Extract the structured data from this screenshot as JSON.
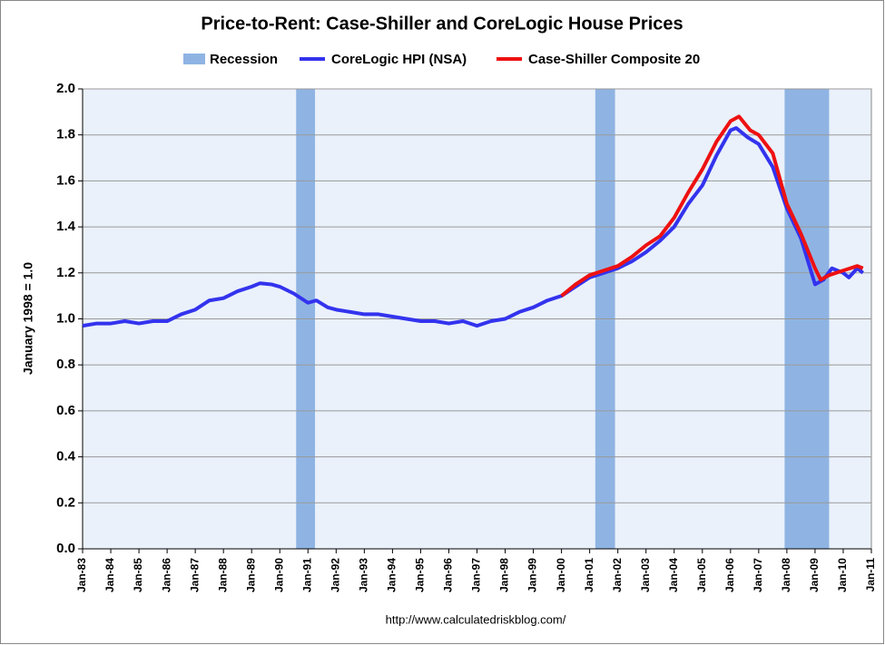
{
  "chart_data": {
    "type": "line",
    "title": "Price-to-Rent: Case-Shiller and CoreLogic House Prices",
    "y_label": "January 1998 = 1.0",
    "source": "http://www.calculatedriskblog.com/",
    "xlim": [
      1983,
      2011
    ],
    "xticks": [
      {
        "value": 1983,
        "label": "Jan-83"
      },
      {
        "value": 1984,
        "label": "Jan-84"
      },
      {
        "value": 1985,
        "label": "Jan-85"
      },
      {
        "value": 1986,
        "label": "Jan-86"
      },
      {
        "value": 1987,
        "label": "Jan-87"
      },
      {
        "value": 1988,
        "label": "Jan-88"
      },
      {
        "value": 1989,
        "label": "Jan-89"
      },
      {
        "value": 1990,
        "label": "Jan-90"
      },
      {
        "value": 1991,
        "label": "Jan-91"
      },
      {
        "value": 1992,
        "label": "Jan-92"
      },
      {
        "value": 1993,
        "label": "Jan-93"
      },
      {
        "value": 1994,
        "label": "Jan-94"
      },
      {
        "value": 1995,
        "label": "Jan-95"
      },
      {
        "value": 1996,
        "label": "Jan-96"
      },
      {
        "value": 1997,
        "label": "Jan-97"
      },
      {
        "value": 1998,
        "label": "Jan-98"
      },
      {
        "value": 1999,
        "label": "Jan-99"
      },
      {
        "value": 2000,
        "label": "Jan-00"
      },
      {
        "value": 2001,
        "label": "Jan-01"
      },
      {
        "value": 2002,
        "label": "Jan-02"
      },
      {
        "value": 2003,
        "label": "Jan-03"
      },
      {
        "value": 2004,
        "label": "Jan-04"
      },
      {
        "value": 2005,
        "label": "Jan-05"
      },
      {
        "value": 2006,
        "label": "Jan-06"
      },
      {
        "value": 2007,
        "label": "Jan-07"
      },
      {
        "value": 2008,
        "label": "Jan-08"
      },
      {
        "value": 2009,
        "label": "Jan-09"
      },
      {
        "value": 2010,
        "label": "Jan-10"
      },
      {
        "value": 2011,
        "label": "Jan-11"
      }
    ],
    "ylim": [
      0,
      2
    ],
    "yticks": [
      {
        "value": 0,
        "label": "0.0"
      },
      0.2,
      0.4,
      0.6,
      0.8,
      {
        "value": 1,
        "label": "1.0"
      },
      1.2,
      1.4,
      1.6,
      1.8,
      {
        "value": 2,
        "label": "2.0"
      }
    ],
    "grid": true,
    "recessions": {
      "name": "Recession",
      "color": "#8fb4e3",
      "spans": [
        [
          1990.58,
          1991.25
        ],
        [
          2001.2,
          2001.9
        ],
        [
          2007.92,
          2009.5
        ]
      ]
    },
    "series": [
      {
        "name": "CoreLogic HPI (NSA)",
        "color": "#3333ee",
        "x": [
          1983,
          1983.5,
          1984,
          1984.5,
          1985,
          1985.5,
          1986,
          1986.5,
          1987,
          1987.5,
          1988,
          1988.5,
          1989,
          1989.3,
          1989.7,
          1990,
          1990.5,
          1991,
          1991.3,
          1991.7,
          1992,
          1992.5,
          1993,
          1993.5,
          1994,
          1994.5,
          1995,
          1995.5,
          1996,
          1996.5,
          1997,
          1997.5,
          1998,
          1998.5,
          1999,
          1999.5,
          2000,
          2000.5,
          2001,
          2001.5,
          2002,
          2002.5,
          2003,
          2003.5,
          2004,
          2004.5,
          2005,
          2005.5,
          2006,
          2006.2,
          2006.6,
          2007,
          2007.5,
          2008,
          2008.5,
          2009,
          2009.3,
          2009.6,
          2010,
          2010.2,
          2010.5,
          2010.7
        ],
        "values": [
          0.97,
          0.98,
          0.98,
          0.99,
          0.98,
          0.99,
          0.99,
          1.02,
          1.04,
          1.08,
          1.09,
          1.12,
          1.14,
          1.155,
          1.15,
          1.14,
          1.11,
          1.07,
          1.08,
          1.05,
          1.04,
          1.03,
          1.02,
          1.02,
          1.01,
          1.0,
          0.99,
          0.99,
          0.98,
          0.99,
          0.97,
          0.99,
          1.0,
          1.03,
          1.05,
          1.08,
          1.1,
          1.14,
          1.18,
          1.2,
          1.22,
          1.25,
          1.29,
          1.34,
          1.4,
          1.5,
          1.58,
          1.71,
          1.82,
          1.83,
          1.79,
          1.76,
          1.66,
          1.48,
          1.35,
          1.15,
          1.17,
          1.22,
          1.2,
          1.18,
          1.22,
          1.2
        ]
      },
      {
        "name": "Case-Shiller Composite 20",
        "color": "#ee1111",
        "x": [
          2000,
          2000.5,
          2001,
          2001.5,
          2002,
          2002.5,
          2003,
          2003.5,
          2004,
          2004.5,
          2005,
          2005.5,
          2006,
          2006.3,
          2006.7,
          2007,
          2007.5,
          2008,
          2008.5,
          2009,
          2009.2,
          2009.5,
          2010,
          2010.5,
          2010.7
        ],
        "values": [
          1.1,
          1.15,
          1.19,
          1.21,
          1.23,
          1.27,
          1.32,
          1.36,
          1.44,
          1.55,
          1.65,
          1.77,
          1.86,
          1.88,
          1.82,
          1.8,
          1.72,
          1.5,
          1.37,
          1.22,
          1.17,
          1.19,
          1.21,
          1.23,
          1.22
        ]
      }
    ]
  }
}
